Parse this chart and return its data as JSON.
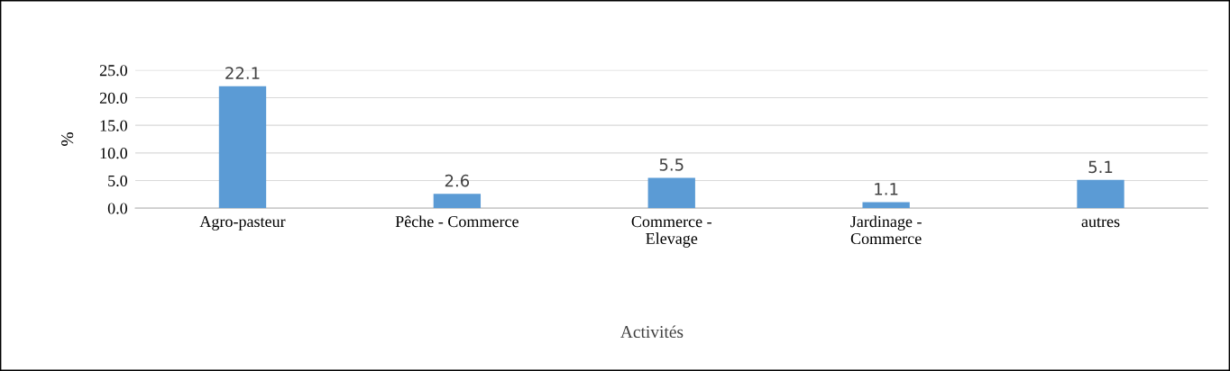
{
  "chart_data": {
    "type": "bar",
    "xlabel": "Activités",
    "ylabel": "%",
    "categories": [
      "Agro-pasteur",
      "Pêche - Commerce",
      "Commerce - Elevage",
      "Jardinage - Commerce",
      "autres"
    ],
    "values": [
      22.1,
      2.6,
      5.5,
      1.1,
      5.1
    ],
    "color": "#5b9bd5",
    "ylim": [
      0,
      25
    ],
    "yticks": [
      {
        "value": 0,
        "label": "0.0"
      },
      {
        "value": 5,
        "label": "5.0"
      },
      {
        "value": 10,
        "label": "10.0"
      },
      {
        "value": 15,
        "label": "15.0"
      },
      {
        "value": 20,
        "label": "20.0"
      },
      {
        "value": 25,
        "label": "25.0"
      }
    ],
    "grid": "y",
    "data_labels": true,
    "legend": false
  }
}
